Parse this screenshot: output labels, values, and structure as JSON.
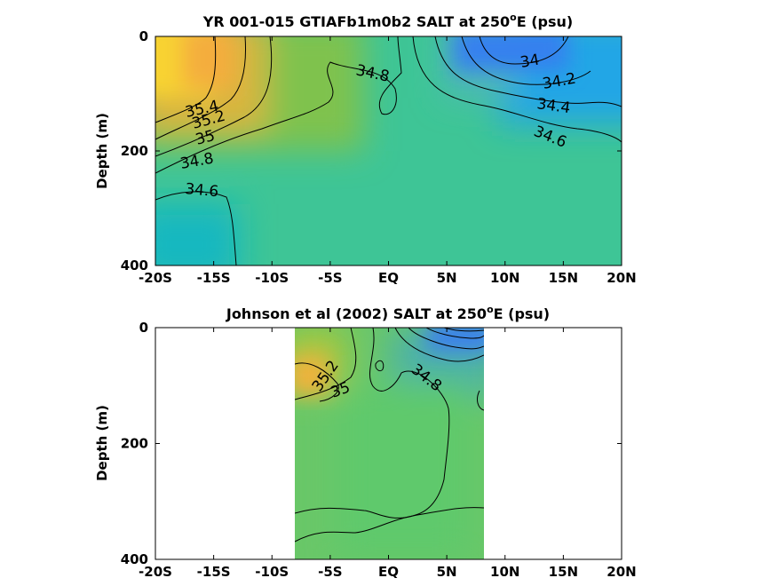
{
  "chart_data": [
    {
      "type": "contour",
      "title": "YR 001-015 GTIAFb1m0b2 SALT at 250",
      "title_superscript": "o",
      "title_suffix": "E (psu)",
      "xlabel": "",
      "ylabel": "Depth (m)",
      "x_ticks": [
        "-20S",
        "-15S",
        "-10S",
        "-5S",
        "EQ",
        "5N",
        "10N",
        "15N",
        "20N"
      ],
      "y_ticks": [
        "0",
        "200",
        "400"
      ],
      "xlim": [
        -20,
        20
      ],
      "ylim": [
        0,
        400
      ],
      "y_reversed": true,
      "contour_labels": [
        "35.4",
        "35.2",
        "35",
        "34.8",
        "34.6",
        "34.8",
        "34",
        "34.2",
        "34.4",
        "34.6"
      ]
    },
    {
      "type": "contour",
      "title": "Johnson et al (2002) SALT at 250",
      "title_superscript": "o",
      "title_suffix": "E (psu)",
      "xlabel": "",
      "ylabel": "Depth (m)",
      "x_ticks": [
        "-20S",
        "-15S",
        "-10S",
        "-5S",
        "EQ",
        "5N",
        "10N",
        "15N",
        "20N"
      ],
      "y_ticks": [
        "0",
        "200",
        "400"
      ],
      "xlim": [
        -20,
        20
      ],
      "ylim": [
        0,
        400
      ],
      "y_reversed": true,
      "data_xlim": [
        -8,
        8
      ],
      "contour_labels": [
        "35.2",
        "35",
        "34.8"
      ]
    }
  ]
}
